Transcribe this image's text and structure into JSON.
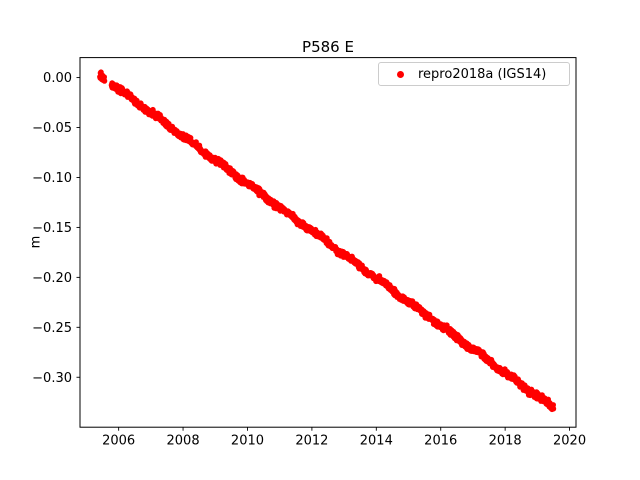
{
  "chart_data": {
    "type": "scatter",
    "title": "P586 E",
    "xlabel": "",
    "ylabel": "m",
    "xlim": [
      2004.8,
      2020.2
    ],
    "ylim": [
      -0.35,
      0.02
    ],
    "grid": false,
    "xticks": [
      2006,
      2008,
      2010,
      2012,
      2014,
      2016,
      2018,
      2020
    ],
    "xtick_labels": [
      "2006",
      "2008",
      "2010",
      "2012",
      "2014",
      "2016",
      "2018",
      "2020"
    ],
    "yticks": [
      0.0,
      -0.05,
      -0.1,
      -0.15,
      -0.2,
      -0.25,
      -0.3
    ],
    "ytick_labels": [
      "0.00",
      "−0.05",
      "−0.10",
      "−0.15",
      "−0.20",
      "−0.25",
      "−0.30"
    ],
    "legend": {
      "position": "upper right",
      "entries": [
        {
          "label": "repro2018a (IGS14)",
          "color": "#ff0000",
          "marker": "dot"
        }
      ]
    },
    "series": {
      "name": "repro2018a (IGS14)",
      "color": "#ff0000",
      "marker_radius_px": 2.8,
      "trend": {
        "x0": 2005.42,
        "y0": 0.002,
        "x1": 2019.5,
        "y1": -0.331
      },
      "segments": [
        [
          2005.42,
          2005.56
        ],
        [
          2005.78,
          2019.5
        ]
      ],
      "points_per_year": 130,
      "noise_m": 0.003,
      "seasonal_amp_m": 0.0012,
      "seed": 42,
      "sampled_points": [
        [
          2005.5,
          0.0
        ],
        [
          2006,
          -0.012
        ],
        [
          2007,
          -0.035
        ],
        [
          2008,
          -0.059
        ],
        [
          2009,
          -0.083
        ],
        [
          2010,
          -0.106
        ],
        [
          2011,
          -0.13
        ],
        [
          2012,
          -0.154
        ],
        [
          2013,
          -0.177
        ],
        [
          2014,
          -0.201
        ],
        [
          2015,
          -0.225
        ],
        [
          2016,
          -0.248
        ],
        [
          2017,
          -0.272
        ],
        [
          2018,
          -0.296
        ],
        [
          2019,
          -0.319
        ],
        [
          2019.5,
          -0.331
        ]
      ]
    },
    "colors": {
      "frame": "#000000",
      "tick_label": "#000000",
      "background": "#ffffff"
    }
  }
}
